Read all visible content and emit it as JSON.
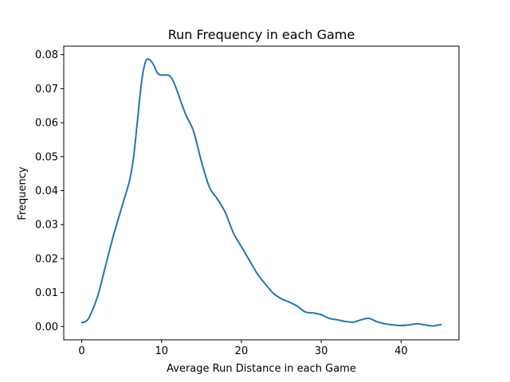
{
  "chart_data": {
    "type": "line",
    "title": "Run Frequency in each Game",
    "xlabel": "Average Run Distance in each Game",
    "ylabel": "Frequency",
    "xlim": [
      -2.25,
      47.25
    ],
    "ylim": [
      -0.0039,
      0.0825
    ],
    "xticks": [
      0,
      10,
      20,
      30,
      40
    ],
    "xtick_labels": [
      "0",
      "10",
      "20",
      "30",
      "40"
    ],
    "yticks": [
      0.0,
      0.01,
      0.02,
      0.03,
      0.04,
      0.05,
      0.06,
      0.07,
      0.08
    ],
    "ytick_labels": [
      "0.00",
      "0.01",
      "0.02",
      "0.03",
      "0.04",
      "0.05",
      "0.06",
      "0.07",
      "0.08"
    ],
    "grid": false,
    "series": [
      {
        "color": "#1f77b4",
        "x": [
          0,
          0.5,
          1,
          2,
          3,
          4,
          5,
          6,
          6.5,
          7,
          7.5,
          8,
          8.5,
          9,
          9.5,
          10,
          10.5,
          11,
          11.5,
          12,
          13,
          14,
          15,
          16,
          17,
          18,
          19,
          20,
          21,
          22,
          23,
          24,
          25,
          26,
          27,
          28,
          29,
          30,
          31,
          32,
          33,
          34,
          35,
          36,
          37,
          38,
          39,
          40,
          41,
          42,
          43,
          44,
          45
        ],
        "y": [
          0.0012,
          0.0015,
          0.003,
          0.009,
          0.018,
          0.027,
          0.035,
          0.043,
          0.05,
          0.061,
          0.072,
          0.078,
          0.0785,
          0.077,
          0.0745,
          0.074,
          0.074,
          0.0738,
          0.072,
          0.069,
          0.0625,
          0.0575,
          0.0485,
          0.041,
          0.0375,
          0.0335,
          0.0275,
          0.0235,
          0.0195,
          0.0155,
          0.0125,
          0.0098,
          0.0082,
          0.0072,
          0.006,
          0.0043,
          0.004,
          0.0035,
          0.0024,
          0.002,
          0.0015,
          0.0013,
          0.002,
          0.0024,
          0.0014,
          0.0008,
          0.0005,
          0.0003,
          0.0005,
          0.0008,
          0.0005,
          0.0002,
          0.0006
        ]
      }
    ]
  }
}
